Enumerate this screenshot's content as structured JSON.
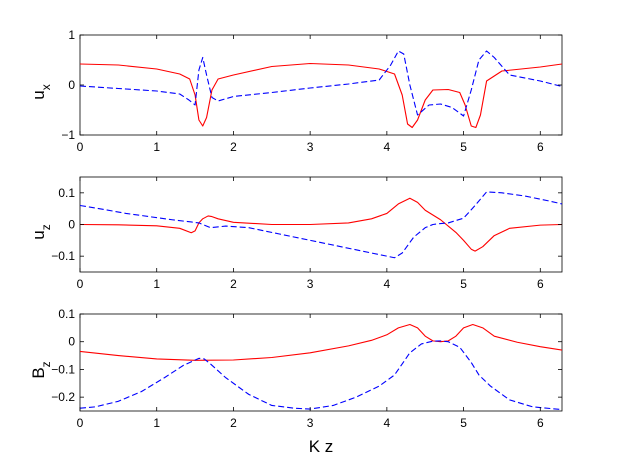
{
  "chart_data": [
    {
      "type": "line",
      "ylabel": "u",
      "ylabel_sub": "x",
      "xlim": [
        0,
        6.283
      ],
      "ylim": [
        -1,
        1
      ],
      "xticks": [
        0,
        1,
        2,
        3,
        4,
        5,
        6
      ],
      "xtick_labels": [
        "0",
        "1",
        "2",
        "3",
        "4",
        "5",
        "6"
      ],
      "yticks": [
        -1,
        0,
        1
      ],
      "ytick_labels": [
        "−1",
        "0",
        "1"
      ],
      "series": [
        {
          "color": "#ff0000",
          "style": "solid",
          "x": [
            0,
            0.5,
            1.0,
            1.3,
            1.43,
            1.5,
            1.55,
            1.6,
            1.65,
            1.72,
            1.8,
            2.0,
            2.5,
            3.0,
            3.5,
            3.9,
            4.1,
            4.2,
            4.27,
            4.33,
            4.4,
            4.5,
            4.6,
            4.8,
            4.95,
            5.02,
            5.1,
            5.16,
            5.22,
            5.3,
            5.5,
            6.0,
            6.283
          ],
          "y": [
            0.42,
            0.4,
            0.32,
            0.22,
            0.12,
            -0.2,
            -0.7,
            -0.82,
            -0.65,
            -0.1,
            0.12,
            0.2,
            0.37,
            0.43,
            0.4,
            0.32,
            0.22,
            -0.2,
            -0.78,
            -0.85,
            -0.7,
            -0.3,
            -0.1,
            -0.09,
            -0.15,
            -0.4,
            -0.82,
            -0.85,
            -0.6,
            0.08,
            0.28,
            0.36,
            0.42
          ]
        },
        {
          "color": "#0000ff",
          "style": "dashed",
          "x": [
            0,
            0.5,
            1.0,
            1.3,
            1.42,
            1.5,
            1.55,
            1.6,
            1.65,
            1.72,
            1.8,
            2.0,
            2.5,
            3.0,
            3.5,
            3.9,
            4.05,
            4.15,
            4.22,
            4.3,
            4.4,
            4.55,
            4.7,
            4.85,
            5.0,
            5.1,
            5.2,
            5.3,
            5.4,
            5.6,
            6.0,
            6.283
          ],
          "y": [
            -0.02,
            -0.07,
            -0.12,
            -0.18,
            -0.3,
            -0.4,
            0.3,
            0.55,
            0.2,
            -0.25,
            -0.32,
            -0.23,
            -0.15,
            -0.06,
            0.02,
            0.1,
            0.4,
            0.68,
            0.62,
            0.0,
            -0.6,
            -0.4,
            -0.38,
            -0.45,
            -0.62,
            -0.1,
            0.5,
            0.68,
            0.55,
            0.2,
            0.08,
            -0.03
          ]
        }
      ]
    },
    {
      "type": "line",
      "ylabel": "u",
      "ylabel_sub": "z",
      "xlim": [
        0,
        6.283
      ],
      "ylim": [
        -0.15,
        0.15
      ],
      "xticks": [
        0,
        1,
        2,
        3,
        4,
        5,
        6
      ],
      "xtick_labels": [
        "0",
        "1",
        "2",
        "3",
        "4",
        "5",
        "6"
      ],
      "yticks": [
        -0.1,
        0,
        0.1
      ],
      "ytick_labels": [
        "−0.1",
        "0",
        "0.1"
      ],
      "series": [
        {
          "color": "#ff0000",
          "style": "solid",
          "x": [
            0,
            0.5,
            1.0,
            1.3,
            1.45,
            1.5,
            1.55,
            1.6,
            1.67,
            1.72,
            1.8,
            2.0,
            2.5,
            3.0,
            3.5,
            3.8,
            4.0,
            4.15,
            4.3,
            4.4,
            4.5,
            4.7,
            4.9,
            5.0,
            5.1,
            5.15,
            5.25,
            5.4,
            5.6,
            6.0,
            6.283
          ],
          "y": [
            0,
            -0.001,
            -0.004,
            -0.012,
            -0.026,
            -0.02,
            0.005,
            0.018,
            0.027,
            0.025,
            0.018,
            0.007,
            0.0,
            0.0,
            0.005,
            0.018,
            0.035,
            0.065,
            0.083,
            0.07,
            0.045,
            0.015,
            -0.025,
            -0.05,
            -0.078,
            -0.084,
            -0.07,
            -0.035,
            -0.012,
            -0.002,
            0
          ]
        },
        {
          "color": "#0000ff",
          "style": "dashed",
          "x": [
            0,
            0.3,
            0.6,
            0.9,
            1.2,
            1.45,
            1.55,
            1.6,
            1.7,
            1.9,
            2.2,
            2.6,
            3.0,
            3.4,
            3.8,
            4.0,
            4.1,
            4.2,
            4.35,
            4.5,
            4.6,
            4.7,
            4.8,
            5.0,
            5.15,
            5.3,
            5.5,
            5.8,
            6.1,
            6.283
          ],
          "y": [
            0.06,
            0.048,
            0.035,
            0.025,
            0.015,
            0.008,
            0.005,
            0.0,
            -0.01,
            -0.005,
            -0.01,
            -0.03,
            -0.05,
            -0.07,
            -0.09,
            -0.1,
            -0.105,
            -0.09,
            -0.04,
            -0.01,
            0.0,
            0.003,
            0.005,
            0.02,
            0.06,
            0.103,
            0.1,
            0.09,
            0.075,
            0.065
          ]
        }
      ]
    },
    {
      "type": "line",
      "ylabel": "B",
      "ylabel_sub": "z",
      "xlabel": "K z",
      "xlim": [
        0,
        6.283
      ],
      "ylim": [
        -0.25,
        0.1
      ],
      "xticks": [
        0,
        1,
        2,
        3,
        4,
        5,
        6
      ],
      "xtick_labels": [
        "0",
        "1",
        "2",
        "3",
        "4",
        "5",
        "6"
      ],
      "yticks": [
        -0.2,
        -0.1,
        0,
        0.1
      ],
      "ytick_labels": [
        "−0.2",
        "−0.1",
        "0",
        "0.1"
      ],
      "series": [
        {
          "color": "#ff0000",
          "style": "solid",
          "x": [
            0,
            0.5,
            1.0,
            1.5,
            2.0,
            2.5,
            3.0,
            3.5,
            3.8,
            4.0,
            4.15,
            4.3,
            4.4,
            4.5,
            4.6,
            4.7,
            4.8,
            4.9,
            5.0,
            5.12,
            5.25,
            5.4,
            5.7,
            6.0,
            6.283
          ],
          "y": [
            -0.035,
            -0.05,
            -0.062,
            -0.067,
            -0.066,
            -0.057,
            -0.04,
            -0.015,
            0.005,
            0.025,
            0.05,
            0.062,
            0.05,
            0.02,
            0.003,
            0.0,
            0.003,
            0.02,
            0.05,
            0.062,
            0.05,
            0.02,
            -0.002,
            -0.018,
            -0.03
          ]
        },
        {
          "color": "#0000ff",
          "style": "dashed",
          "x": [
            0,
            0.2,
            0.5,
            0.8,
            1.1,
            1.35,
            1.55,
            1.62,
            1.7,
            1.9,
            2.2,
            2.5,
            2.8,
            3.0,
            3.3,
            3.6,
            3.9,
            4.1,
            4.2,
            4.3,
            4.45,
            4.6,
            4.7,
            4.8,
            4.95,
            5.1,
            5.2,
            5.35,
            5.6,
            5.9,
            6.283
          ],
          "y": [
            -0.24,
            -0.235,
            -0.215,
            -0.18,
            -0.13,
            -0.085,
            -0.06,
            -0.062,
            -0.08,
            -0.13,
            -0.19,
            -0.23,
            -0.24,
            -0.243,
            -0.23,
            -0.2,
            -0.16,
            -0.12,
            -0.08,
            -0.04,
            -0.008,
            0.002,
            0.003,
            0.0,
            -0.02,
            -0.075,
            -0.12,
            -0.16,
            -0.21,
            -0.235,
            -0.245
          ]
        }
      ]
    }
  ]
}
